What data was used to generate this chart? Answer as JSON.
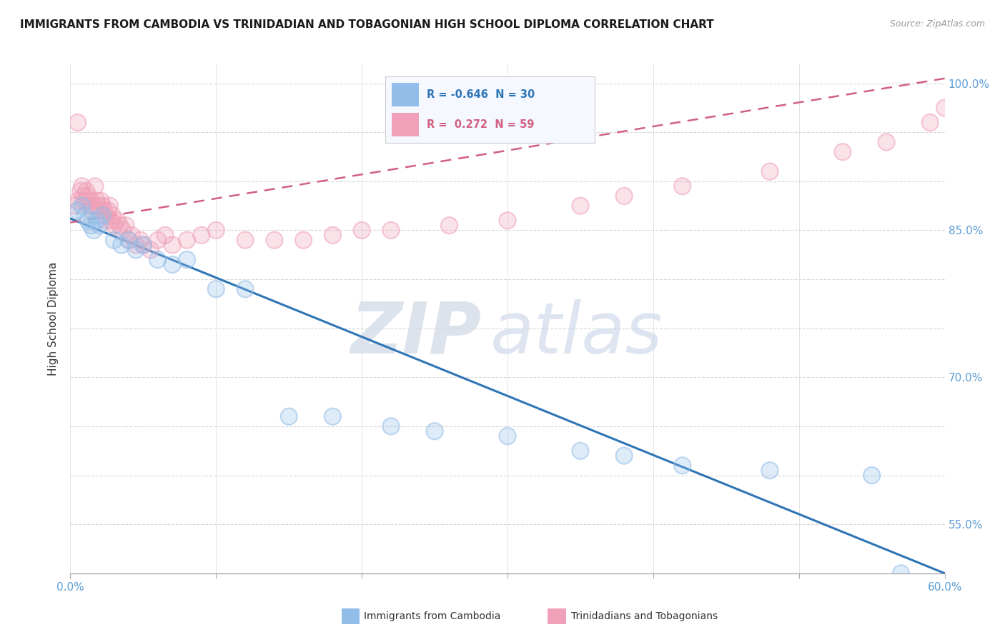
{
  "title": "IMMIGRANTS FROM CAMBODIA VS TRINIDADIAN AND TOBAGONIAN HIGH SCHOOL DIPLOMA CORRELATION CHART",
  "source": "Source: ZipAtlas.com",
  "ylabel": "High School Diploma",
  "xlim": [
    0.0,
    0.6
  ],
  "ylim": [
    0.5,
    1.02
  ],
  "xticks": [
    0.0,
    0.1,
    0.2,
    0.3,
    0.4,
    0.5,
    0.6
  ],
  "xticklabels": [
    "0.0%",
    "",
    "",
    "",
    "",
    "",
    "60.0%"
  ],
  "ytick_positions": [
    0.55,
    0.6,
    0.65,
    0.7,
    0.75,
    0.8,
    0.85,
    0.9,
    0.95,
    1.0
  ],
  "ytick_labels": [
    "",
    "",
    "",
    "70.0%",
    "",
    "",
    "85.0%",
    "",
    "",
    "100.0%"
  ],
  "right_ytick_positions": [
    0.55,
    0.7,
    0.85,
    1.0
  ],
  "right_ytick_labels": [
    "55.0%",
    "70.0%",
    "85.0%",
    "100.0%"
  ],
  "background_color": "#ffffff",
  "grid_color": "#d8d8d8",
  "watermark_zip": "ZIP",
  "watermark_atlas": "atlas",
  "legend_r_blue": "-0.646",
  "legend_n_blue": "30",
  "legend_r_pink": "0.272",
  "legend_n_pink": "59",
  "blue_color": "#92bde8",
  "pink_color": "#f0a0b8",
  "blue_line_color": "#2e75b6",
  "pink_line_color": "#d06080",
  "blue_scatter_x": [
    0.005,
    0.008,
    0.01,
    0.012,
    0.014,
    0.016,
    0.018,
    0.02,
    0.022,
    0.03,
    0.035,
    0.04,
    0.045,
    0.05,
    0.06,
    0.07,
    0.08,
    0.1,
    0.12,
    0.15,
    0.18,
    0.22,
    0.25,
    0.3,
    0.35,
    0.38,
    0.42,
    0.48,
    0.55,
    0.57
  ],
  "blue_scatter_y": [
    0.87,
    0.875,
    0.865,
    0.86,
    0.855,
    0.85,
    0.86,
    0.855,
    0.865,
    0.84,
    0.835,
    0.84,
    0.83,
    0.835,
    0.82,
    0.815,
    0.82,
    0.79,
    0.79,
    0.66,
    0.66,
    0.65,
    0.645,
    0.64,
    0.625,
    0.62,
    0.61,
    0.605,
    0.6,
    0.5
  ],
  "pink_scatter_x": [
    0.003,
    0.005,
    0.007,
    0.008,
    0.009,
    0.01,
    0.011,
    0.012,
    0.013,
    0.014,
    0.015,
    0.016,
    0.017,
    0.018,
    0.019,
    0.02,
    0.021,
    0.022,
    0.023,
    0.024,
    0.025,
    0.026,
    0.027,
    0.028,
    0.029,
    0.03,
    0.032,
    0.034,
    0.036,
    0.038,
    0.04,
    0.042,
    0.045,
    0.048,
    0.05,
    0.055,
    0.06,
    0.065,
    0.07,
    0.08,
    0.09,
    0.1,
    0.12,
    0.14,
    0.16,
    0.18,
    0.2,
    0.22,
    0.26,
    0.3,
    0.35,
    0.38,
    0.42,
    0.48,
    0.53,
    0.56,
    0.59,
    0.6,
    0.005
  ],
  "pink_scatter_y": [
    0.875,
    0.88,
    0.89,
    0.895,
    0.885,
    0.88,
    0.89,
    0.885,
    0.875,
    0.88,
    0.87,
    0.875,
    0.895,
    0.88,
    0.875,
    0.87,
    0.88,
    0.875,
    0.87,
    0.865,
    0.86,
    0.87,
    0.875,
    0.86,
    0.865,
    0.855,
    0.86,
    0.855,
    0.85,
    0.855,
    0.84,
    0.845,
    0.835,
    0.84,
    0.835,
    0.83,
    0.84,
    0.845,
    0.835,
    0.84,
    0.845,
    0.85,
    0.84,
    0.84,
    0.84,
    0.845,
    0.85,
    0.85,
    0.855,
    0.86,
    0.875,
    0.885,
    0.895,
    0.91,
    0.93,
    0.94,
    0.96,
    0.975,
    0.96
  ],
  "blue_trendline_x": [
    0.0,
    0.6
  ],
  "blue_trendline_y": [
    0.862,
    0.5
  ],
  "pink_trendline_x": [
    0.0,
    0.6
  ],
  "pink_trendline_y": [
    0.858,
    1.005
  ]
}
